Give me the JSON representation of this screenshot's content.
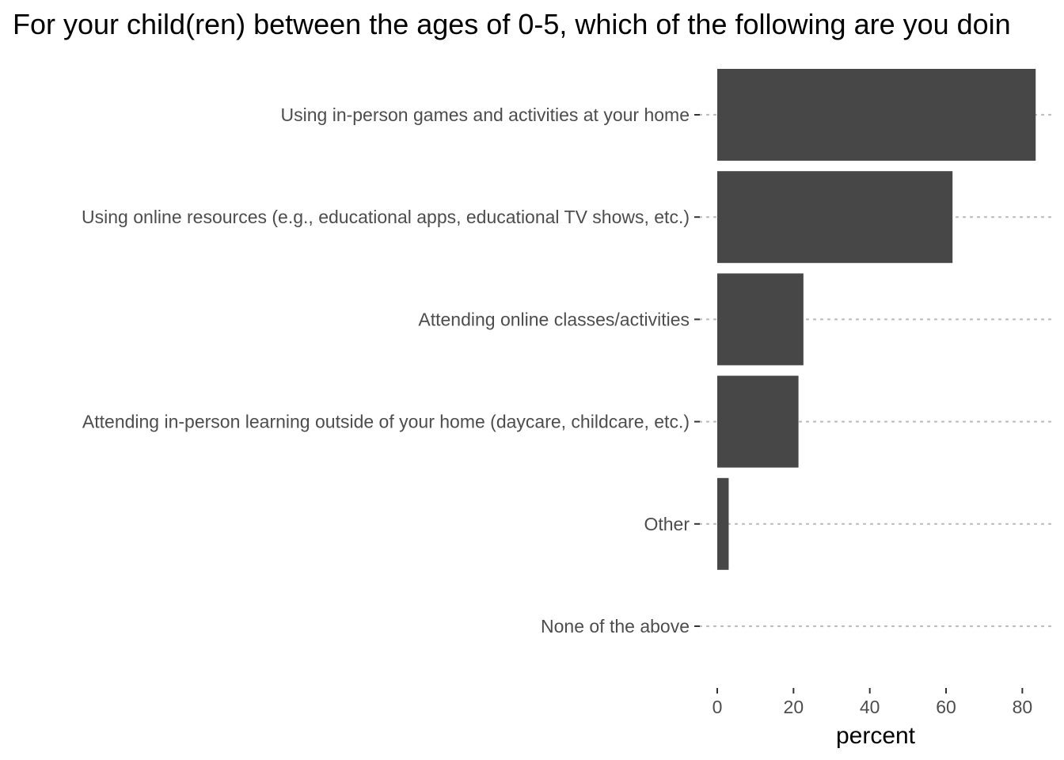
{
  "chart_data": {
    "type": "bar",
    "orientation": "horizontal",
    "title": "For your child(ren) between the ages of 0-5, which of the following are you doin",
    "xlabel": "percent",
    "ylabel": "",
    "categories": [
      "Using in-person games and activities at your home",
      "Using online resources (e.g., educational apps, educational TV shows, etc.)",
      "Attending online classes/activities",
      "Attending in-person learning outside of your home (daycare, childcare, etc.)",
      "Other",
      "None of the above"
    ],
    "values": [
      83.5,
      61.7,
      22.6,
      21.3,
      3.0,
      0.0
    ],
    "xlim": [
      0,
      87
    ],
    "xticks": [
      "0",
      "20",
      "40",
      "60",
      "80"
    ],
    "grid": "dotted horizontal major lines",
    "legend": "none",
    "colors": {
      "bar": "#474747",
      "grid": "#bdbdbd",
      "text": "#4d4d4d",
      "tick": "#333333"
    }
  }
}
